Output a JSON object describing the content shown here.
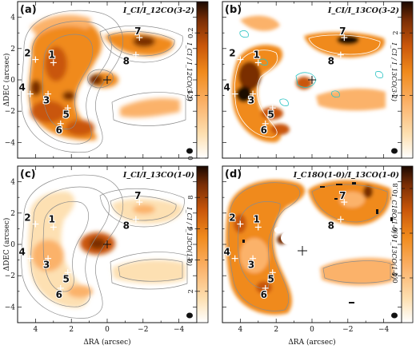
{
  "colors": {
    "cmap": [
      "#ffffff",
      "#fde0b2",
      "#fbb26a",
      "#f08a1c",
      "#c9560a",
      "#7a2e06",
      "#1a0800"
    ],
    "contour_gray": "#8c8c8c",
    "contour_cyan": "#2ec4c4",
    "axes": "#111111"
  },
  "axes_text": {
    "xlabel": "ΔRA (arcsec)",
    "ylabel": "ΔDEC (arcsec)",
    "x_ticks": [
      "4",
      "2",
      "0",
      "−2",
      "−4"
    ],
    "y_ticks": [
      "4",
      "2",
      "0",
      "−2",
      "−4"
    ]
  },
  "sources": [
    {
      "id": "1",
      "ra": 3.0,
      "dec": 1.1
    },
    {
      "id": "2",
      "ra": 4.0,
      "dec": 1.3
    },
    {
      "id": "3",
      "ra": 3.3,
      "dec": -0.9
    },
    {
      "id": "4",
      "ra": 4.3,
      "dec": -0.9
    },
    {
      "id": "5",
      "ra": 2.2,
      "dec": -1.8
    },
    {
      "id": "6",
      "ra": 2.6,
      "dec": -2.8
    },
    {
      "id": "7",
      "ra": -1.8,
      "dec": 2.7
    },
    {
      "id": "8",
      "ra": -1.6,
      "dec": 1.6
    }
  ],
  "chart_data": [
    {
      "type": "heatmap",
      "panel": "(a)",
      "title": "I_CI/I_12CO(3-2)",
      "xlabel": "ΔRA (arcsec)",
      "ylabel": "ΔDEC (arcsec)",
      "xlim": [
        5,
        -5
      ],
      "ylim": [
        -5,
        5
      ],
      "colorbar": {
        "ticks": [
          "0.2",
          "0.1",
          "0"
        ],
        "range": [
          0,
          0.25
        ],
        "label": "I_CI / I_12CO(3-2)"
      },
      "contours": "gray"
    },
    {
      "type": "heatmap",
      "panel": "(b)",
      "title": "I_CI/I_13CO(3-2)",
      "xlabel": "ΔRA (arcsec)",
      "ylabel": "ΔDEC (arcsec)",
      "xlim": [
        5,
        -5
      ],
      "ylim": [
        -5,
        5
      ],
      "colorbar": {
        "ticks": [
          "2",
          "1"
        ],
        "range": [
          0,
          2.5
        ],
        "label": "I_CI / I_13CO(3-2)"
      },
      "contours": "white+cyan"
    },
    {
      "type": "heatmap",
      "panel": "(c)",
      "title": "I_CI/I_13CO(1-0)",
      "xlabel": "ΔRA (arcsec)",
      "ylabel": "ΔDEC (arcsec)",
      "xlim": [
        5,
        -5
      ],
      "ylim": [
        -5,
        5
      ],
      "colorbar": {
        "ticks": [
          "8",
          "6",
          "4",
          "2"
        ],
        "range": [
          0,
          10
        ],
        "label": "I_CI / I_13CO(1-0)"
      },
      "contours": "gray"
    },
    {
      "type": "heatmap",
      "panel": "(d)",
      "title": "I_C18O(1-0)/I_13CO(1-0)",
      "xlabel": "ΔRA (arcsec)",
      "ylabel": "ΔDEC (arcsec)",
      "xlim": [
        5,
        -5
      ],
      "ylim": [
        -5,
        5
      ],
      "colorbar": {
        "ticks": [
          "0.8",
          "0.6",
          "0.4"
        ],
        "range": [
          0.2,
          0.9
        ],
        "label": "I_C18O(1-0) / I_13CO(1-0)"
      },
      "contours": "gray"
    }
  ],
  "panels": [
    {
      "label": "(a)",
      "title": "I_CI/I_12CO(3-2)"
    },
    {
      "label": "(b)",
      "title": "I_CI/I_13CO(3-2)"
    },
    {
      "label": "(c)",
      "title": "I_CI/I_13CO(1-0)"
    },
    {
      "label": "(d)",
      "title": "I_C18O(1-0)/I_13CO(1-0)"
    }
  ]
}
